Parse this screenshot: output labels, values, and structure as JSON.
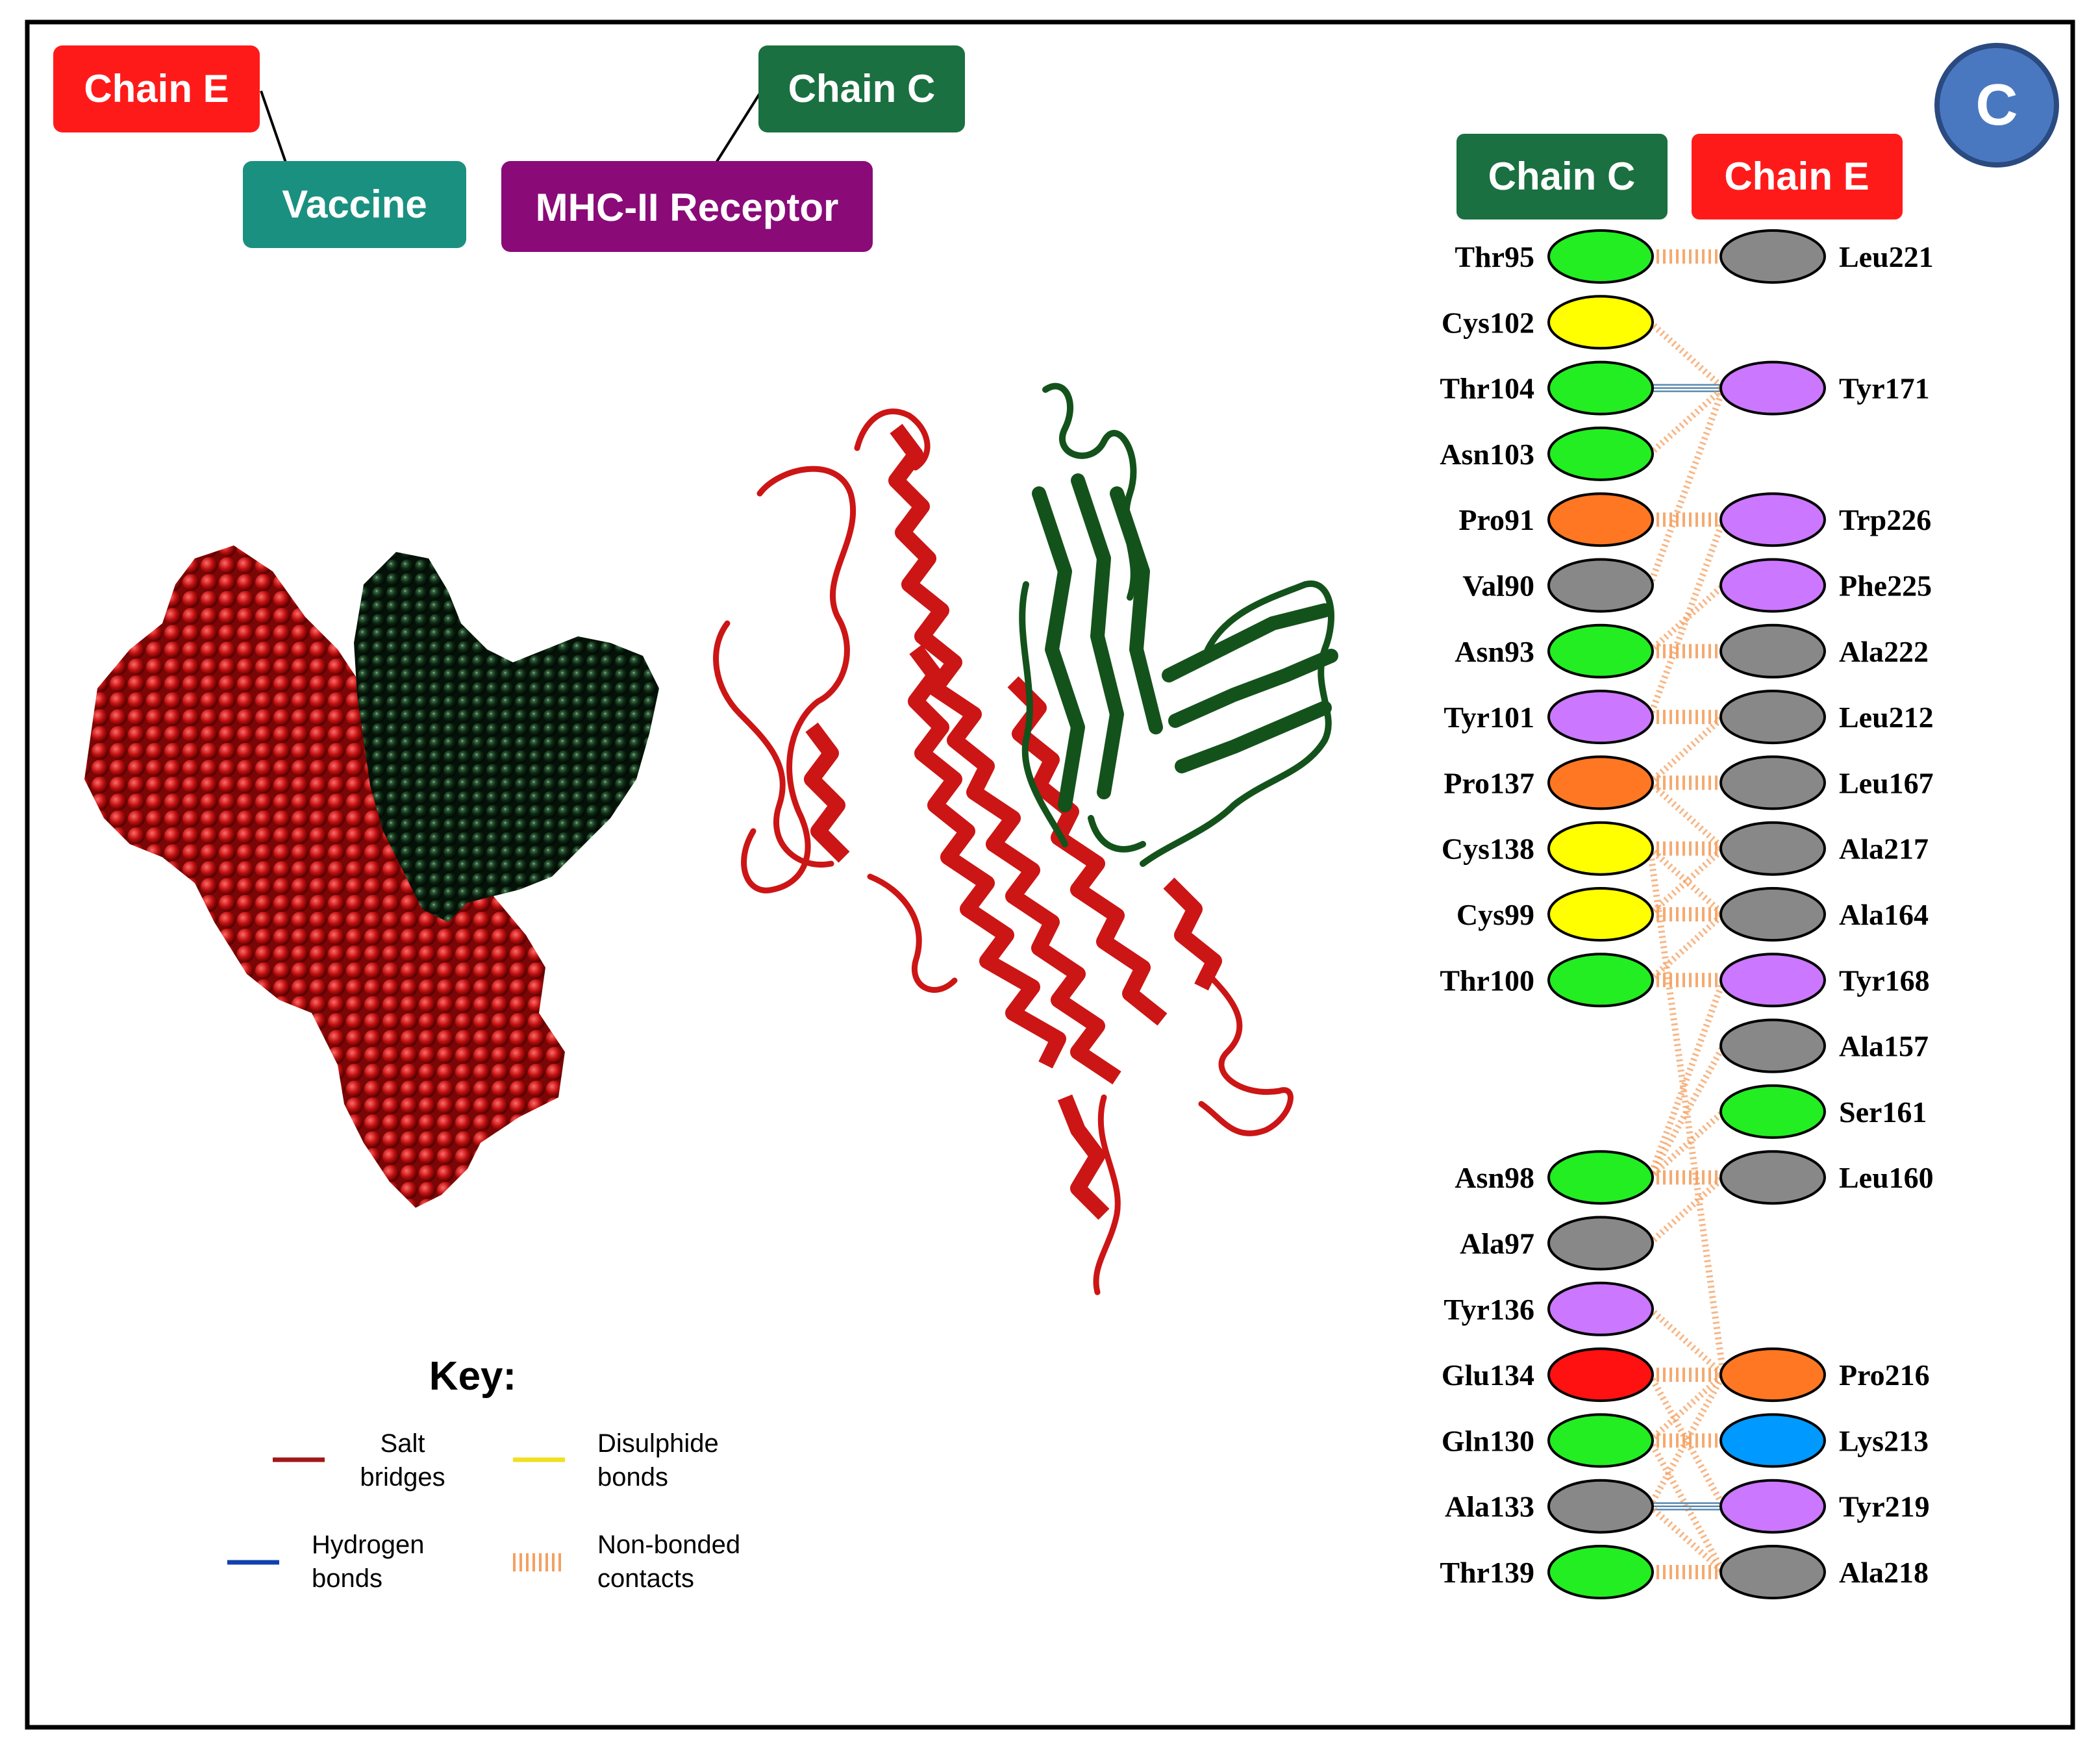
{
  "panel_letter": "C",
  "labels": {
    "chain_e": "Chain E",
    "chain_c": "Chain C",
    "vaccine": "Vaccine",
    "mhc": "MHC-II Receptor"
  },
  "interface_header": {
    "left": "Chain C",
    "right": "Chain E"
  },
  "key": {
    "title": "Key:",
    "salt_1": "Salt",
    "salt_2": "bridges",
    "disulphide_1": "Disulphide",
    "disulphide_2": "bonds",
    "hydrogen_1": "Hydrogen",
    "hydrogen_2": "bonds",
    "nonbonded_1": "Non-bonded",
    "nonbonded_2": "contacts"
  },
  "colors": {
    "chain_e_red": "#ff1a1a",
    "chain_c_green": "#1a7040",
    "vaccine_teal": "#1a9080",
    "mhc_purple": "#8a0a78",
    "panel_blue": "#4a78c0",
    "vaccine_space_fill": "#c01010",
    "receptor_space_fill": "#0d2a14",
    "ribbon_red": "#cc1515",
    "ribbon_green": "#14521c",
    "nonbonded": "#f4a060",
    "hbond": "#5a8ab0",
    "salt": "#a01818",
    "disulphide": "#f0e020",
    "hbond_key": "#1040b0"
  },
  "chain_c_residues": [
    {
      "name": "Thr95",
      "color": "#22ee22"
    },
    {
      "name": "Cys102",
      "color": "#ffff00"
    },
    {
      "name": "Thr104",
      "color": "#22ee22"
    },
    {
      "name": "Asn103",
      "color": "#22ee22"
    },
    {
      "name": "Pro91",
      "color": "#ff7722"
    },
    {
      "name": "Val90",
      "color": "#888888"
    },
    {
      "name": "Asn93",
      "color": "#22ee22"
    },
    {
      "name": "Tyr101",
      "color": "#cc77ff"
    },
    {
      "name": "Pro137",
      "color": "#ff7722"
    },
    {
      "name": "Cys138",
      "color": "#ffff00"
    },
    {
      "name": "Cys99",
      "color": "#ffff00"
    },
    {
      "name": "Thr100",
      "color": "#22ee22"
    },
    {
      "name": "",
      "color": ""
    },
    {
      "name": "",
      "color": ""
    },
    {
      "name": "Asn98",
      "color": "#22ee22"
    },
    {
      "name": "Ala97",
      "color": "#888888"
    },
    {
      "name": "Tyr136",
      "color": "#cc77ff"
    },
    {
      "name": "Glu134",
      "color": "#ff1111"
    },
    {
      "name": "Gln130",
      "color": "#22ee22"
    },
    {
      "name": "Ala133",
      "color": "#888888"
    },
    {
      "name": "Thr139",
      "color": "#22ee22"
    }
  ],
  "chain_e_residues": [
    {
      "name": "Leu221",
      "color": "#888888"
    },
    {
      "name": "",
      "color": ""
    },
    {
      "name": "Tyr171",
      "color": "#cc77ff"
    },
    {
      "name": "",
      "color": ""
    },
    {
      "name": "Trp226",
      "color": "#cc77ff"
    },
    {
      "name": "Phe225",
      "color": "#cc77ff"
    },
    {
      "name": "Ala222",
      "color": "#888888"
    },
    {
      "name": "Leu212",
      "color": "#888888"
    },
    {
      "name": "Leu167",
      "color": "#888888"
    },
    {
      "name": "Ala217",
      "color": "#888888"
    },
    {
      "name": "Ala164",
      "color": "#888888"
    },
    {
      "name": "Tyr168",
      "color": "#cc77ff"
    },
    {
      "name": "Ala157",
      "color": "#888888"
    },
    {
      "name": "Ser161",
      "color": "#22ee22"
    },
    {
      "name": "Leu160",
      "color": "#888888"
    },
    {
      "name": "",
      "color": ""
    },
    {
      "name": "",
      "color": ""
    },
    {
      "name": "Pro216",
      "color": "#ff7722"
    },
    {
      "name": "Lys213",
      "color": "#0099ff"
    },
    {
      "name": "Tyr219",
      "color": "#cc77ff"
    },
    {
      "name": "Ala218",
      "color": "#888888"
    }
  ],
  "interactions": [
    {
      "c": "Thr95",
      "e": "Leu221",
      "type": "nonbonded"
    },
    {
      "c": "Cys102",
      "e": "Tyr171",
      "type": "nonbonded"
    },
    {
      "c": "Thr104",
      "e": "Tyr171",
      "type": "hydrogen"
    },
    {
      "c": "Asn103",
      "e": "Tyr171",
      "type": "nonbonded"
    },
    {
      "c": "Pro91",
      "e": "Trp226",
      "type": "nonbonded"
    },
    {
      "c": "Val90",
      "e": "Tyr171",
      "type": "nonbonded"
    },
    {
      "c": "Asn93",
      "e": "Ala222",
      "type": "nonbonded"
    },
    {
      "c": "Asn93",
      "e": "Phe225",
      "type": "nonbonded"
    },
    {
      "c": "Tyr101",
      "e": "Leu212",
      "type": "nonbonded"
    },
    {
      "c": "Tyr101",
      "e": "Trp226",
      "type": "nonbonded"
    },
    {
      "c": "Pro137",
      "e": "Leu167",
      "type": "nonbonded"
    },
    {
      "c": "Pro137",
      "e": "Leu212",
      "type": "nonbonded"
    },
    {
      "c": "Pro137",
      "e": "Ala217",
      "type": "nonbonded"
    },
    {
      "c": "Cys138",
      "e": "Ala217",
      "type": "nonbonded"
    },
    {
      "c": "Cys138",
      "e": "Ala164",
      "type": "nonbonded"
    },
    {
      "c": "Cys99",
      "e": "Ala164",
      "type": "nonbonded"
    },
    {
      "c": "Cys99",
      "e": "Ala217",
      "type": "nonbonded"
    },
    {
      "c": "Thr100",
      "e": "Tyr168",
      "type": "nonbonded"
    },
    {
      "c": "Thr100",
      "e": "Ala164",
      "type": "nonbonded"
    },
    {
      "c": "Asn98",
      "e": "Leu160",
      "type": "nonbonded"
    },
    {
      "c": "Asn98",
      "e": "Ser161",
      "type": "nonbonded"
    },
    {
      "c": "Asn98",
      "e": "Ala157",
      "type": "nonbonded"
    },
    {
      "c": "Asn98",
      "e": "Tyr168",
      "type": "nonbonded"
    },
    {
      "c": "Ala97",
      "e": "Leu160",
      "type": "nonbonded"
    },
    {
      "c": "Cys138",
      "e": "Pro216",
      "type": "nonbonded"
    },
    {
      "c": "Tyr136",
      "e": "Pro216",
      "type": "nonbonded"
    },
    {
      "c": "Glu134",
      "e": "Pro216",
      "type": "nonbonded"
    },
    {
      "c": "Glu134",
      "e": "Tyr219",
      "type": "nonbonded"
    },
    {
      "c": "Gln130",
      "e": "Lys213",
      "type": "nonbonded"
    },
    {
      "c": "Gln130",
      "e": "Pro216",
      "type": "nonbonded"
    },
    {
      "c": "Gln130",
      "e": "Ala218",
      "type": "nonbonded"
    },
    {
      "c": "Ala133",
      "e": "Tyr219",
      "type": "hydrogen"
    },
    {
      "c": "Ala133",
      "e": "Ala218",
      "type": "nonbonded"
    },
    {
      "c": "Ala133",
      "e": "Pro216",
      "type": "nonbonded"
    },
    {
      "c": "Thr139",
      "e": "Ala218",
      "type": "nonbonded"
    }
  ]
}
